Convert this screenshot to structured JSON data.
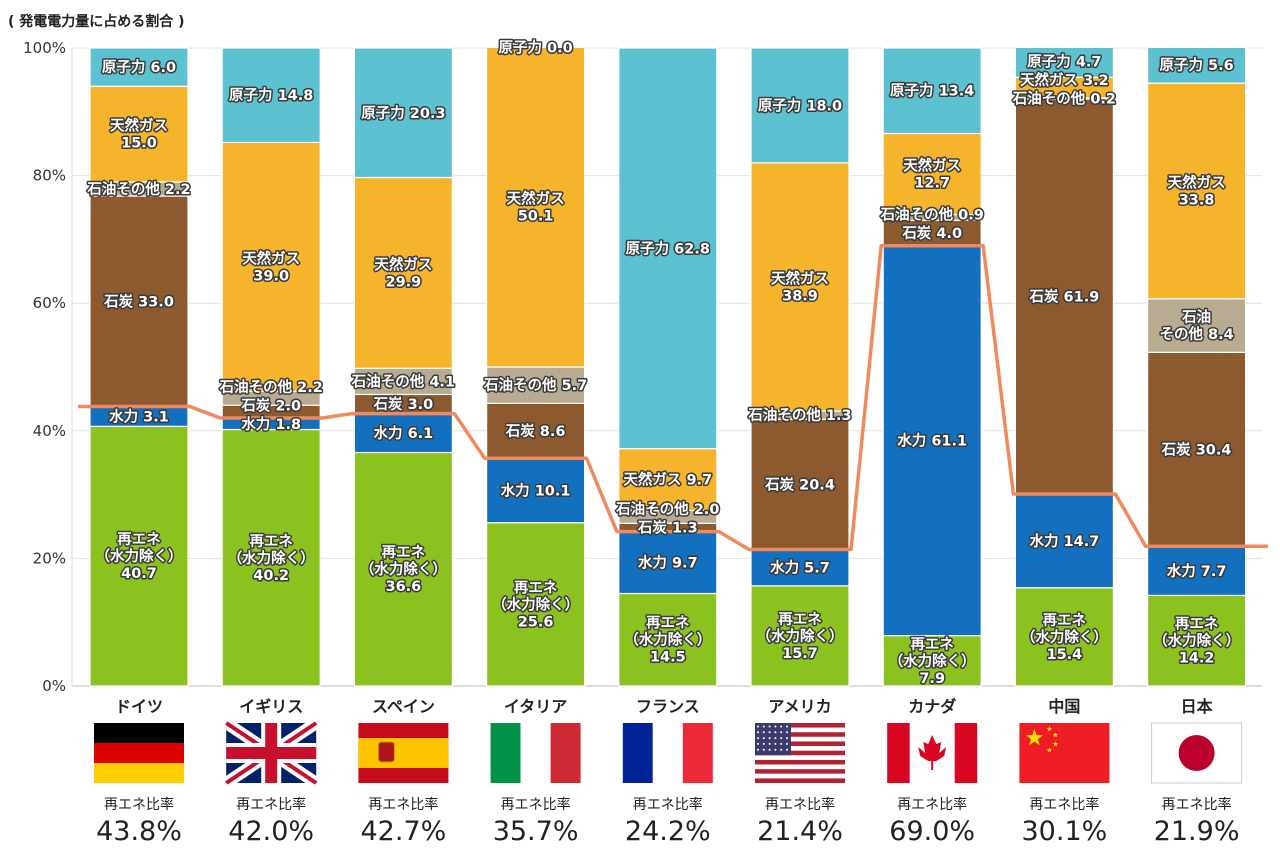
{
  "chart_data": {
    "type": "bar",
    "stacked": true,
    "title": "( 発電電力量に占める割合 )",
    "ylim": [
      0,
      100
    ],
    "yticks": [
      "0%",
      "20%",
      "40%",
      "60%",
      "80%",
      "100%"
    ],
    "grid": true,
    "ratio_label": "再エネ比率",
    "colors": {
      "renewable": "#8cc21f",
      "hydro": "#1270bf",
      "coal": "#8c5a2e",
      "oil": "#b9ab92",
      "gas": "#f6b32c",
      "nuclear": "#5cc1d0",
      "line": "#ef8a5e",
      "japan_name": "#e3141b"
    },
    "segment_keys": [
      "renewable",
      "hydro",
      "coal",
      "oil",
      "gas",
      "nuclear"
    ],
    "countries": [
      {
        "name": "ドイツ",
        "flag": "germany-flag",
        "ratio": 43.8,
        "ratio_text": "43.8%",
        "values": [
          40.7,
          3.1,
          33.0,
          2.2,
          15.0,
          6.0
        ],
        "labels": [
          "再エネ\n（水力除く）\n40.7",
          "水力 3.1",
          "石炭 33.0",
          "石油その他 2.2",
          "天然ガス\n15.0",
          "原子力 6.0"
        ]
      },
      {
        "name": "イギリス",
        "flag": "uk-flag",
        "ratio": 42.0,
        "ratio_text": "42.0%",
        "values": [
          40.2,
          1.8,
          2.0,
          2.2,
          39.0,
          14.8
        ],
        "labels": [
          "再エネ\n（水力除く）\n40.2",
          "水力 1.8",
          "石炭 2.0",
          "石油その他 2.2",
          "天然ガス\n39.0",
          "原子力 14.8"
        ]
      },
      {
        "name": "スペイン",
        "flag": "spain-flag",
        "ratio": 42.7,
        "ratio_text": "42.7%",
        "values": [
          36.6,
          6.1,
          3.0,
          4.1,
          29.9,
          20.3
        ],
        "labels": [
          "再エネ\n（水力除く）\n36.6",
          "水力 6.1",
          "石炭 3.0",
          "石油その他 4.1",
          "天然ガス\n29.9",
          "原子力 20.3"
        ]
      },
      {
        "name": "イタリア",
        "flag": "italy-flag",
        "ratio": 35.7,
        "ratio_text": "35.7%",
        "values": [
          25.6,
          10.1,
          8.6,
          5.7,
          50.1,
          0.0
        ],
        "labels": [
          "再エネ\n（水力除く）\n25.6",
          "水力 10.1",
          "石炭 8.6",
          "石油その他 5.7",
          "天然ガス\n50.1",
          "原子力 0.0"
        ]
      },
      {
        "name": "フランス",
        "flag": "france-flag",
        "ratio": 24.2,
        "ratio_text": "24.2%",
        "values": [
          14.5,
          9.7,
          1.3,
          2.0,
          9.7,
          62.8
        ],
        "labels": [
          "再エネ\n（水力除く）\n14.5",
          "水力 9.7",
          "石炭 1.3",
          "石油その他 2.0",
          "天然ガス 9.7",
          "原子力 62.8"
        ]
      },
      {
        "name": "アメリカ",
        "flag": "usa-flag",
        "ratio": 21.4,
        "ratio_text": "21.4%",
        "values": [
          15.7,
          5.7,
          20.4,
          1.3,
          38.9,
          18.0
        ],
        "labels": [
          "再エネ\n（水力除く）\n15.7",
          "水力 5.7",
          "石炭 20.4",
          "石油その他 1.3",
          "天然ガス\n38.9",
          "原子力 18.0"
        ]
      },
      {
        "name": "カナダ",
        "flag": "canada-flag",
        "ratio": 69.0,
        "ratio_text": "69.0%",
        "values": [
          7.9,
          61.1,
          4.0,
          0.9,
          12.7,
          13.4
        ],
        "labels": [
          "再エネ\n（水力除く）\n7.9",
          "水力 61.1",
          "石炭 4.0",
          "石油その他 0.9",
          "天然ガス\n12.7",
          "原子力 13.4"
        ]
      },
      {
        "name": "中国",
        "flag": "china-flag",
        "ratio": 30.1,
        "ratio_text": "30.1%",
        "values": [
          15.4,
          14.7,
          61.9,
          0.2,
          3.2,
          4.7
        ],
        "labels": [
          "再エネ\n（水力除く）\n15.4",
          "水力 14.7",
          "石炭 61.9",
          "石油その他 0.2",
          "天然ガス 3.2",
          "原子力 4.7"
        ]
      },
      {
        "name": "日本",
        "flag": "japan-flag",
        "ratio": 21.9,
        "ratio_text": "21.9%",
        "values": [
          14.2,
          7.7,
          30.4,
          8.4,
          33.8,
          5.6
        ],
        "labels": [
          "再エネ\n（水力除く）\n14.2",
          "水力 7.7",
          "石炭 30.4",
          "石油\nその他 8.4",
          "天然ガス\n33.8",
          "原子力 5.6"
        ]
      }
    ]
  }
}
